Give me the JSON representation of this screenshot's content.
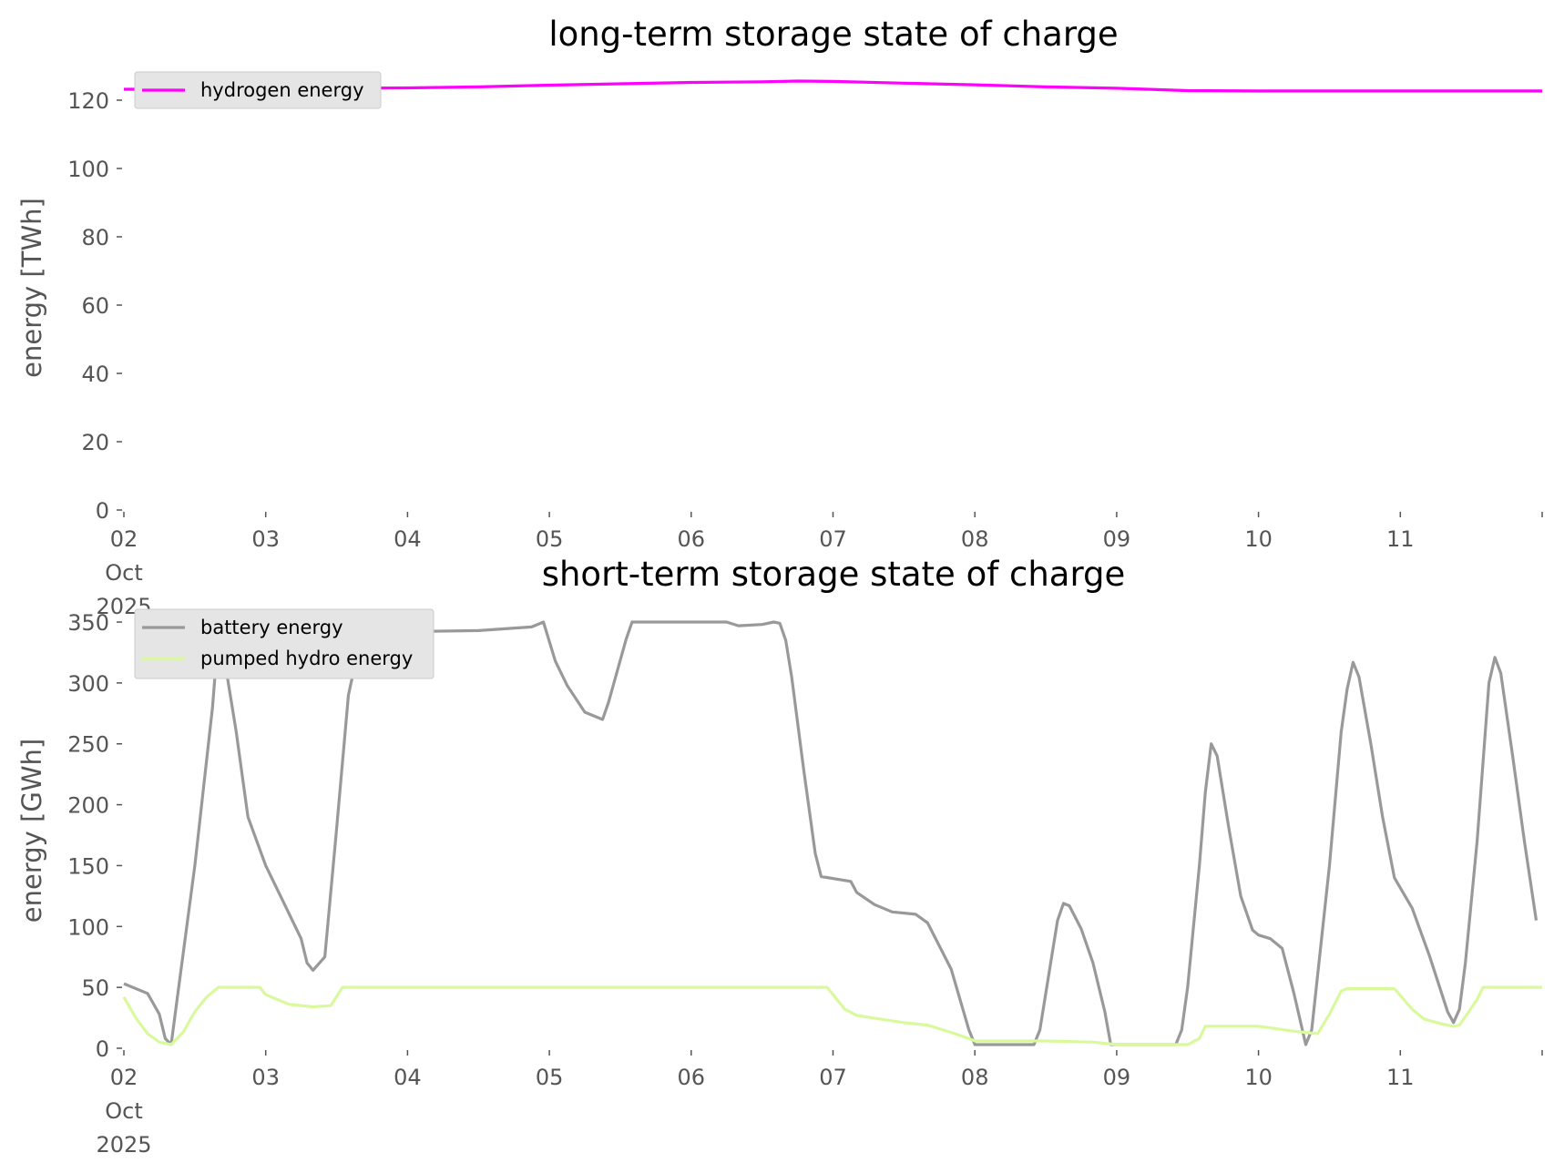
{
  "chart_data": [
    {
      "type": "line",
      "title": "long-term storage state of charge",
      "ylabel": "energy [TWh]",
      "xlabel": "",
      "ylim": [
        0,
        128
      ],
      "yticks": [
        0,
        20,
        40,
        60,
        80,
        100,
        120
      ],
      "xlim": [
        "2025-10-02",
        "2025-10-12"
      ],
      "xtick_labels": [
        "02\nOct\n2025",
        "03",
        "04",
        "05",
        "06",
        "07",
        "08",
        "09",
        "10",
        "11"
      ],
      "grid": false,
      "legend": "top-left",
      "series": [
        {
          "name": "hydrogen energy",
          "color": "#ff00ff",
          "points": [
            [
              "2025-10-02 00:00",
              123.2
            ],
            [
              "2025-10-03 00:00",
              123.4
            ],
            [
              "2025-10-04 00:00",
              123.6
            ],
            [
              "2025-10-04 12:00",
              123.9
            ],
            [
              "2025-10-05 00:00",
              124.4
            ],
            [
              "2025-10-05 12:00",
              124.8
            ],
            [
              "2025-10-06 00:00",
              125.2
            ],
            [
              "2025-10-06 12:00",
              125.4
            ],
            [
              "2025-10-06 18:00",
              125.6
            ],
            [
              "2025-10-07 00:00",
              125.5
            ],
            [
              "2025-10-07 12:00",
              125.0
            ],
            [
              "2025-10-08 00:00",
              124.5
            ],
            [
              "2025-10-08 12:00",
              123.9
            ],
            [
              "2025-10-09 00:00",
              123.5
            ],
            [
              "2025-10-09 12:00",
              122.8
            ],
            [
              "2025-10-10 00:00",
              122.7
            ],
            [
              "2025-10-10 12:00",
              122.7
            ],
            [
              "2025-10-11 00:00",
              122.7
            ],
            [
              "2025-10-12 00:00",
              122.7
            ]
          ]
        }
      ]
    },
    {
      "type": "line",
      "title": "short-term storage state of charge",
      "ylabel": "energy [GWh]",
      "xlabel": "",
      "ylim": [
        0,
        362
      ],
      "yticks": [
        0,
        50,
        100,
        150,
        200,
        250,
        300,
        350
      ],
      "xlim": [
        "2025-10-02",
        "2025-10-12"
      ],
      "xtick_labels": [
        "02\nOct\n2025",
        "03",
        "04",
        "05",
        "06",
        "07",
        "08",
        "09",
        "10",
        "11"
      ],
      "grid": false,
      "legend": "top-left",
      "series": [
        {
          "name": "battery energy",
          "color": "#999999",
          "points": [
            [
              "2025-10-02 00:00",
              53
            ],
            [
              "2025-10-02 04:00",
              45
            ],
            [
              "2025-10-02 06:00",
              28
            ],
            [
              "2025-10-02 07:00",
              8
            ],
            [
              "2025-10-02 08:00",
              3
            ],
            [
              "2025-10-02 09:00",
              40
            ],
            [
              "2025-10-02 12:00",
              150
            ],
            [
              "2025-10-02 15:00",
              280
            ],
            [
              "2025-10-02 16:00",
              342
            ],
            [
              "2025-10-02 17:00",
              320
            ],
            [
              "2025-10-02 19:00",
              260
            ],
            [
              "2025-10-02 21:00",
              190
            ],
            [
              "2025-10-03 00:00",
              150
            ],
            [
              "2025-10-03 03:00",
              120
            ],
            [
              "2025-10-03 06:00",
              90
            ],
            [
              "2025-10-03 07:00",
              70
            ],
            [
              "2025-10-03 08:00",
              64
            ],
            [
              "2025-10-03 10:00",
              75
            ],
            [
              "2025-10-03 12:00",
              180
            ],
            [
              "2025-10-03 14:00",
              290
            ],
            [
              "2025-10-03 16:00",
              335
            ],
            [
              "2025-10-03 17:00",
              350
            ],
            [
              "2025-10-03 19:00",
              328
            ],
            [
              "2025-10-03 20:00",
              325
            ],
            [
              "2025-10-03 22:00",
              342
            ],
            [
              "2025-10-04 12:00",
              343
            ],
            [
              "2025-10-04 21:00",
              346
            ],
            [
              "2025-10-04 23:00",
              350
            ],
            [
              "2025-10-05 01:00",
              318
            ],
            [
              "2025-10-05 03:00",
              298
            ],
            [
              "2025-10-05 06:00",
              276
            ],
            [
              "2025-10-05 09:00",
              270
            ],
            [
              "2025-10-05 10:00",
              284
            ],
            [
              "2025-10-05 13:00",
              336
            ],
            [
              "2025-10-05 14:00",
              350
            ],
            [
              "2025-10-06 06:00",
              350
            ],
            [
              "2025-10-06 08:00",
              347
            ],
            [
              "2025-10-06 12:00",
              348
            ],
            [
              "2025-10-06 14:00",
              350
            ],
            [
              "2025-10-06 15:00",
              349
            ],
            [
              "2025-10-06 16:00",
              335
            ],
            [
              "2025-10-06 17:00",
              305
            ],
            [
              "2025-10-06 19:00",
              230
            ],
            [
              "2025-10-06 21:00",
              160
            ],
            [
              "2025-10-06 22:00",
              141
            ],
            [
              "2025-10-07 03:00",
              137
            ],
            [
              "2025-10-07 04:00",
              128
            ],
            [
              "2025-10-07 07:00",
              118
            ],
            [
              "2025-10-07 10:00",
              112
            ],
            [
              "2025-10-07 14:00",
              110
            ],
            [
              "2025-10-07 16:00",
              103
            ],
            [
              "2025-10-07 20:00",
              65
            ],
            [
              "2025-10-07 23:00",
              15
            ],
            [
              "2025-10-08 00:00",
              3
            ],
            [
              "2025-10-08 10:00",
              3
            ],
            [
              "2025-10-08 11:00",
              15
            ],
            [
              "2025-10-08 13:00",
              75
            ],
            [
              "2025-10-08 14:00",
              105
            ],
            [
              "2025-10-08 15:00",
              119
            ],
            [
              "2025-10-08 16:00",
              117
            ],
            [
              "2025-10-08 18:00",
              98
            ],
            [
              "2025-10-08 20:00",
              70
            ],
            [
              "2025-10-08 22:00",
              30
            ],
            [
              "2025-10-08 23:00",
              3
            ],
            [
              "2025-10-09 10:00",
              3
            ],
            [
              "2025-10-09 11:00",
              15
            ],
            [
              "2025-10-09 12:00",
              50
            ],
            [
              "2025-10-09 14:00",
              150
            ],
            [
              "2025-10-09 15:00",
              210
            ],
            [
              "2025-10-09 16:00",
              250
            ],
            [
              "2025-10-09 17:00",
              240
            ],
            [
              "2025-10-09 19:00",
              180
            ],
            [
              "2025-10-09 21:00",
              125
            ],
            [
              "2025-10-09 23:00",
              97
            ],
            [
              "2025-10-10 00:00",
              93
            ],
            [
              "2025-10-10 02:00",
              90
            ],
            [
              "2025-10-10 04:00",
              82
            ],
            [
              "2025-10-10 06:00",
              45
            ],
            [
              "2025-10-10 08:00",
              3
            ],
            [
              "2025-10-10 09:00",
              15
            ],
            [
              "2025-10-10 12:00",
              150
            ],
            [
              "2025-10-10 14:00",
              260
            ],
            [
              "2025-10-10 15:00",
              295
            ],
            [
              "2025-10-10 16:00",
              317
            ],
            [
              "2025-10-10 17:00",
              305
            ],
            [
              "2025-10-10 19:00",
              250
            ],
            [
              "2025-10-10 21:00",
              190
            ],
            [
              "2025-10-10 23:00",
              140
            ],
            [
              "2025-10-11 02:00",
              115
            ],
            [
              "2025-10-11 05:00",
              75
            ],
            [
              "2025-10-11 08:00",
              30
            ],
            [
              "2025-10-11 09:00",
              21
            ],
            [
              "2025-10-11 10:00",
              32
            ],
            [
              "2025-10-11 11:00",
              70
            ],
            [
              "2025-10-11 13:00",
              170
            ],
            [
              "2025-10-11 15:00",
              300
            ],
            [
              "2025-10-11 16:00",
              321
            ],
            [
              "2025-10-11 17:00",
              308
            ],
            [
              "2025-10-11 19:00",
              240
            ],
            [
              "2025-10-11 21:00",
              170
            ],
            [
              "2025-10-11 23:00",
              105
            ]
          ]
        },
        {
          "name": "pumped hydro energy",
          "color": "#d9f99d",
          "points": [
            [
              "2025-10-02 00:00",
              42
            ],
            [
              "2025-10-02 02:00",
              25
            ],
            [
              "2025-10-02 04:00",
              12
            ],
            [
              "2025-10-02 06:00",
              5
            ],
            [
              "2025-10-02 08:00",
              3
            ],
            [
              "2025-10-02 10:00",
              13
            ],
            [
              "2025-10-02 12:00",
              30
            ],
            [
              "2025-10-02 14:00",
              42
            ],
            [
              "2025-10-02 16:00",
              50
            ],
            [
              "2025-10-02 23:00",
              50
            ],
            [
              "2025-10-03 00:00",
              44
            ],
            [
              "2025-10-03 04:00",
              36
            ],
            [
              "2025-10-03 08:00",
              34
            ],
            [
              "2025-10-03 11:00",
              35
            ],
            [
              "2025-10-03 13:00",
              50
            ],
            [
              "2025-10-06 23:00",
              50
            ],
            [
              "2025-10-07 02:00",
              32
            ],
            [
              "2025-10-07 04:00",
              27
            ],
            [
              "2025-10-07 08:00",
              24
            ],
            [
              "2025-10-07 12:00",
              21
            ],
            [
              "2025-10-07 16:00",
              19
            ],
            [
              "2025-10-07 20:00",
              13
            ],
            [
              "2025-10-07 23:00",
              8
            ],
            [
              "2025-10-08 00:00",
              6
            ],
            [
              "2025-10-08 12:00",
              6
            ],
            [
              "2025-10-08 20:00",
              5
            ],
            [
              "2025-10-09 00:00",
              3
            ],
            [
              "2025-10-09 12:00",
              3
            ],
            [
              "2025-10-09 14:00",
              8
            ],
            [
              "2025-10-09 15:00",
              18
            ],
            [
              "2025-10-10 00:00",
              18
            ],
            [
              "2025-10-10 06:00",
              14
            ],
            [
              "2025-10-10 10:00",
              12
            ],
            [
              "2025-10-10 12:00",
              28
            ],
            [
              "2025-10-10 14:00",
              47
            ],
            [
              "2025-10-10 15:00",
              49
            ],
            [
              "2025-10-10 23:00",
              49
            ],
            [
              "2025-10-11 02:00",
              32
            ],
            [
              "2025-10-11 04:00",
              24
            ],
            [
              "2025-10-11 07:00",
              20
            ],
            [
              "2025-10-11 09:00",
              18
            ],
            [
              "2025-10-11 10:00",
              19
            ],
            [
              "2025-10-11 13:00",
              40
            ],
            [
              "2025-10-11 14:00",
              50
            ],
            [
              "2025-10-12 00:00",
              50
            ]
          ]
        }
      ]
    }
  ]
}
